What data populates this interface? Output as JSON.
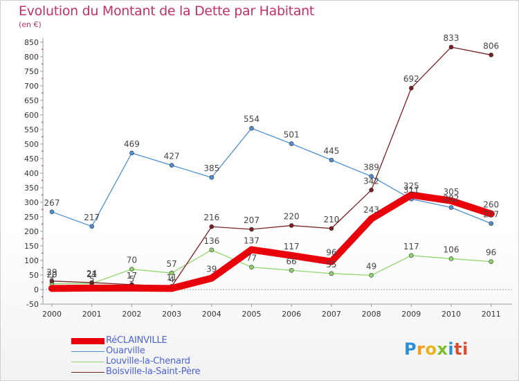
{
  "header": {
    "title": "Evolution du Montant de la Dette par Habitant",
    "subtitle": "(en €)"
  },
  "logo": {
    "letters": [
      "P",
      "r",
      "o",
      "x",
      "i",
      "ti"
    ]
  },
  "chart_data": {
    "type": "line",
    "title": "Evolution du Montant de la Dette par Habitant",
    "subtitle": "(en €)",
    "x": [
      "2000",
      "2001",
      "2002",
      "2003",
      "2004",
      "2005",
      "2006",
      "2007",
      "2008",
      "2009",
      "2010",
      "2011"
    ],
    "y_ticks": [
      -50,
      0,
      50,
      100,
      150,
      200,
      250,
      300,
      350,
      400,
      450,
      500,
      550,
      600,
      650,
      700,
      750,
      800,
      850
    ],
    "ylim": [
      -50,
      850
    ],
    "grid": false,
    "legend_position": "bottom-left",
    "series": [
      {
        "name": "RéCLAINVILLE",
        "color": "#e8000b",
        "values": [
          4,
          5,
          5,
          4,
          39,
          137,
          117,
          96,
          243,
          325,
          305,
          260
        ],
        "labels": [
          "4",
          "5",
          "5",
          "4",
          "39",
          "137",
          "117",
          "96",
          "243",
          "325",
          "305",
          "260"
        ]
      },
      {
        "name": "Ouarville",
        "color": "#4f8fd2",
        "values": [
          267,
          217,
          469,
          427,
          385,
          554,
          501,
          445,
          389,
          311,
          282,
          227
        ],
        "labels": [
          "267",
          "217",
          "469",
          "427",
          "385",
          "554",
          "501",
          "445",
          "389",
          "311",
          "282",
          "227"
        ]
      },
      {
        "name": "Louville-la-Chenard",
        "color": "#8fd66a",
        "values": [
          20,
          21,
          70,
          57,
          136,
          77,
          66,
          55,
          49,
          117,
          106,
          96
        ],
        "labels": [
          "20",
          "21",
          "70",
          "57",
          "136",
          "77",
          "66",
          "55",
          "49",
          "117",
          "106",
          "96"
        ]
      },
      {
        "name": "Boisville-la-Saint-Père",
        "color": "#7a1f22",
        "values": [
          29,
          24,
          17,
          11,
          216,
          207,
          220,
          210,
          342,
          692,
          833,
          806
        ],
        "labels": [
          "29",
          "24",
          "17",
          "11",
          "216",
          "207",
          "220",
          "210",
          "342",
          "692",
          "833",
          "806"
        ]
      }
    ]
  }
}
